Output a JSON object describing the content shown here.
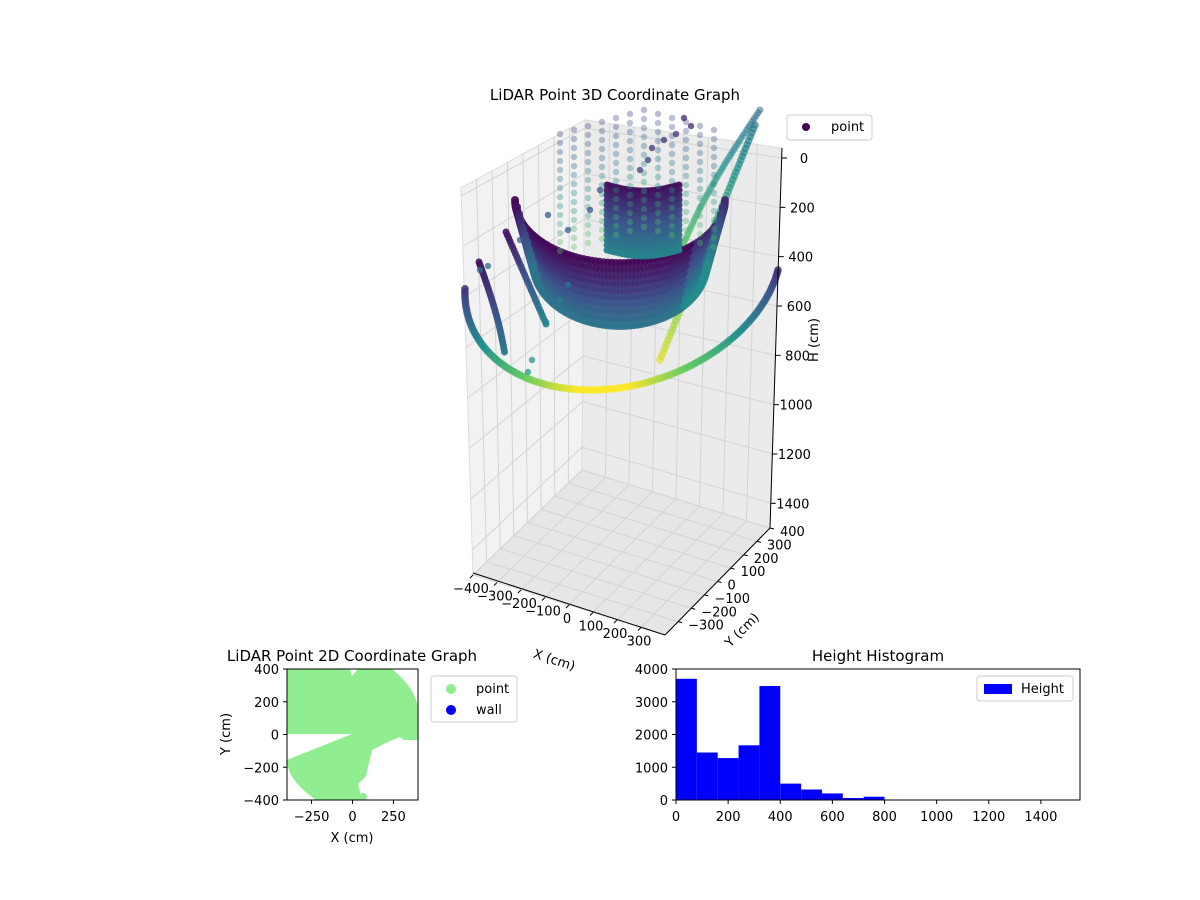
{
  "colors": {
    "point_2d": "#90ee90",
    "wall": "#0000ff",
    "hist": "#0000ff",
    "pane": "#f2f2f2",
    "grid": "#cccccc",
    "colormap": "viridis"
  },
  "chart_data": [
    {
      "type": "scatter",
      "projection": "3d",
      "title": "LiDAR Point 3D Coordinate Graph",
      "xlabel": "X (cm)",
      "ylabel": "Y (cm)",
      "zlabel": "H (cm)",
      "xlim": [
        -400,
        400
      ],
      "ylim": [
        -400,
        400
      ],
      "zlim": [
        1500,
        0
      ],
      "x_ticks": [
        "−400",
        "−300",
        "−200",
        "−100",
        "0",
        "100",
        "200",
        "300"
      ],
      "y_ticks": [
        "−300",
        "−200",
        "−100",
        "0",
        "100",
        "200",
        "300",
        "400"
      ],
      "z_ticks": [
        "0",
        "200",
        "400",
        "600",
        "800",
        "1000",
        "1200",
        "1400"
      ],
      "legend": [
        "point"
      ],
      "legend_position": "upper-right",
      "series": [
        {
          "name": "point",
          "description_points": [
            {
              "x": -390,
              "y": 0,
              "z": 400
            },
            {
              "x": -330,
              "y": -120,
              "z": 700
            },
            {
              "x": -230,
              "y": -260,
              "z": 950
            },
            {
              "x": -80,
              "y": -340,
              "z": 1050
            },
            {
              "x": 80,
              "y": -360,
              "z": 1000
            },
            {
              "x": 220,
              "y": -300,
              "z": 850
            },
            {
              "x": 330,
              "y": -170,
              "z": 650
            },
            {
              "x": 390,
              "y": 0,
              "z": 400
            },
            {
              "x": 350,
              "y": 150,
              "z": 200
            },
            {
              "x": 200,
              "y": 300,
              "z": 50
            },
            {
              "x": 0,
              "y": 350,
              "z": 0
            },
            {
              "x": -250,
              "y": 250,
              "z": 100
            }
          ]
        }
      ],
      "grid": true
    },
    {
      "type": "scatter",
      "title": "LiDAR Point 2D Coordinate Graph",
      "xlabel": "X (cm)",
      "ylabel": "Y (cm)",
      "xlim": [
        -400,
        400
      ],
      "ylim": [
        -400,
        400
      ],
      "x_ticks": [
        "−250",
        "0",
        "250"
      ],
      "y_ticks": [
        "400",
        "200",
        "0",
        "−200",
        "−400"
      ],
      "legend": [
        "point",
        "wall"
      ],
      "legend_position": "outside-right",
      "series": [
        {
          "name": "point",
          "color": "#90ee90"
        },
        {
          "name": "wall",
          "color": "#0000ff"
        }
      ],
      "grid": false
    },
    {
      "type": "bar",
      "title": "Height Histogram",
      "xlabel": "",
      "ylabel": "",
      "xlim": [
        0,
        1550
      ],
      "ylim": [
        0,
        4000
      ],
      "x_ticks": [
        "0",
        "200",
        "400",
        "600",
        "800",
        "1000",
        "1200",
        "1400"
      ],
      "y_ticks": [
        "0",
        "1000",
        "2000",
        "3000",
        "4000"
      ],
      "bin_width": 80,
      "bin_starts": [
        0,
        80,
        160,
        240,
        320,
        400,
        480,
        560,
        640,
        720,
        800,
        880,
        960,
        1040,
        1120,
        1200,
        1280,
        1360,
        1440
      ],
      "values": [
        3700,
        1450,
        1280,
        1670,
        3480,
        500,
        320,
        200,
        60,
        100,
        0,
        0,
        0,
        0,
        0,
        0,
        0,
        0,
        0
      ],
      "legend": [
        "Height"
      ],
      "legend_position": "upper-right",
      "series": [
        {
          "name": "Height",
          "color": "#0000ff"
        }
      ],
      "grid": false
    }
  ]
}
